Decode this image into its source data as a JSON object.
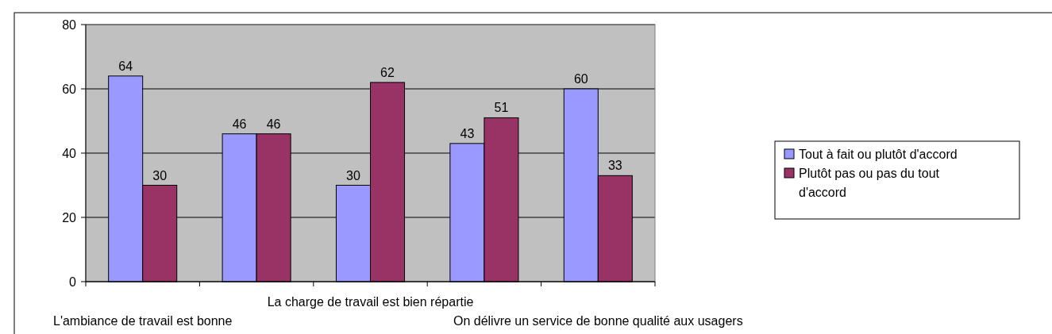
{
  "chart_data": {
    "type": "bar",
    "categories": [
      "L'ambiance de travail est bonne",
      null,
      "La charge de travail est bien répartie",
      null,
      "On délivre un service de bonne qualité aux usagers"
    ],
    "series": [
      {
        "name": "Tout à fait ou plutôt d'accord",
        "color": "#9999ff",
        "values": [
          64,
          46,
          30,
          43,
          60
        ]
      },
      {
        "name": "Plutôt pas ou pas du tout d'accord",
        "color": "#993366",
        "values": [
          30,
          46,
          62,
          51,
          33
        ]
      }
    ],
    "ylim": [
      0,
      80
    ],
    "yticks": [
      0,
      20,
      40,
      60,
      80
    ],
    "grid": "y",
    "legend": "right",
    "data_labels": true
  }
}
